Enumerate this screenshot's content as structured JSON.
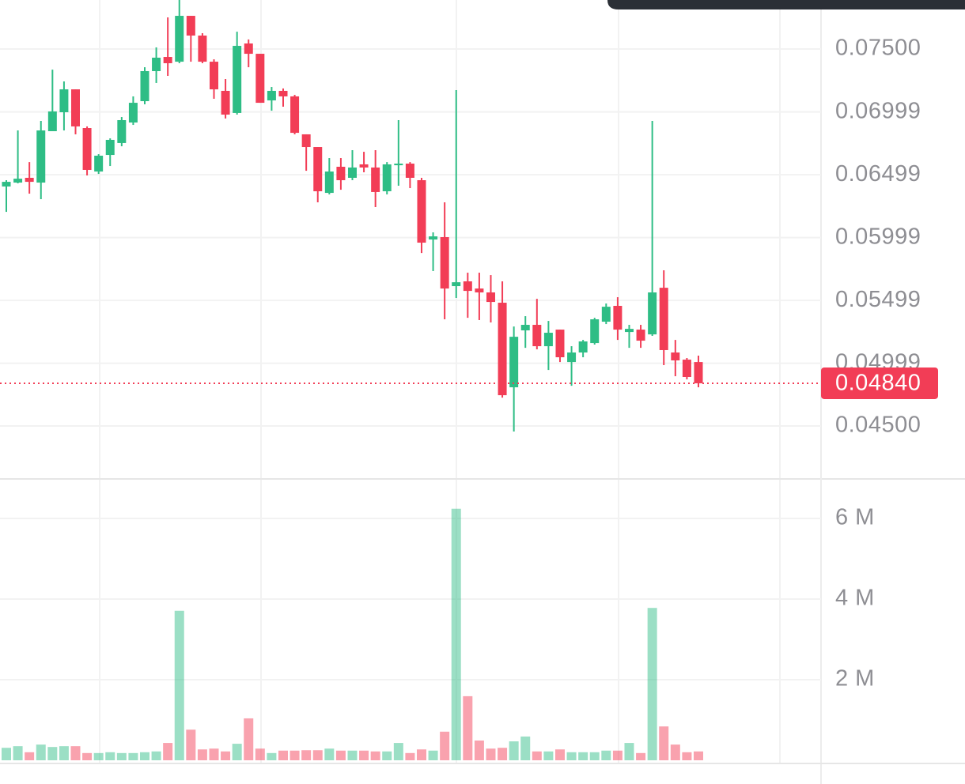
{
  "chart_data": [
    {
      "type": "candlestick",
      "open": [
        0.06406,
        0.06437,
        0.06475,
        0.06437,
        0.06846,
        0.06997,
        0.07179,
        0.06871,
        0.06525,
        0.06657,
        0.06752,
        0.06915,
        0.07085,
        0.07324,
        0.07437,
        0.07399,
        0.07764,
        0.07607,
        0.07399,
        0.07167,
        0.06991,
        0.07544,
        0.07462,
        0.07091,
        0.07167,
        0.07123,
        0.06821,
        0.0672,
        0.06355,
        0.06563,
        0.06475,
        0.06582,
        0.06557,
        0.06368,
        0.06575,
        0.06588,
        0.06456,
        0.05984,
        0.06003,
        0.05613,
        0.05651,
        0.05594,
        0.05563,
        0.05481,
        0.04808,
        0.05261,
        0.05305,
        0.05135,
        0.05267,
        0.05009,
        0.05085,
        0.0516,
        0.0533,
        0.05456,
        0.05248,
        0.05267,
        0.05229,
        0.056,
        0.05085,
        0.05028,
        0.05009
      ],
      "high": [
        0.06456,
        0.06852,
        0.066,
        0.06928,
        0.07336,
        0.07242,
        0.07179,
        0.06884,
        0.06663,
        0.06789,
        0.06959,
        0.07123,
        0.07355,
        0.07513,
        0.07752,
        0.0789,
        0.07764,
        0.07626,
        0.07418,
        0.07261,
        0.07638,
        0.07576,
        0.07462,
        0.07198,
        0.07186,
        0.07135,
        0.06821,
        0.0672,
        0.06632,
        0.06632,
        0.06695,
        0.06682,
        0.06695,
        0.066,
        0.06934,
        0.066,
        0.06475,
        0.06041,
        0.0628,
        0.07173,
        0.0572,
        0.0572,
        0.05701,
        0.05651,
        0.05292,
        0.05374,
        0.05512,
        0.05336,
        0.05267,
        0.05135,
        0.05185,
        0.05361,
        0.05475,
        0.05525,
        0.05305,
        0.05305,
        0.06928,
        0.05739,
        0.05185,
        0.05041,
        0.0506
      ],
      "low": [
        0.06204,
        0.06431,
        0.06349,
        0.06305,
        0.06846,
        0.06852,
        0.06821,
        0.06494,
        0.06506,
        0.06569,
        0.06726,
        0.06896,
        0.0706,
        0.0723,
        0.07286,
        0.07387,
        0.07399,
        0.07387,
        0.07104,
        0.06947,
        0.06978,
        0.07355,
        0.07072,
        0.07009,
        0.07041,
        0.06821,
        0.06531,
        0.0628,
        0.06343,
        0.0638,
        0.06456,
        0.06519,
        0.06242,
        0.06343,
        0.06412,
        0.06393,
        0.05877,
        0.05733,
        0.05349,
        0.05519,
        0.05361,
        0.05343,
        0.05324,
        0.04726,
        0.04456,
        0.05122,
        0.0511,
        0.04946,
        0.05009,
        0.0482,
        0.05047,
        0.05148,
        0.05311,
        0.05185,
        0.05122,
        0.05122,
        0.05217,
        0.04984,
        0.04896,
        0.04871,
        0.04808
      ],
      "close": [
        0.06443,
        0.06468,
        0.06443,
        0.06852,
        0.07003,
        0.07179,
        0.06884,
        0.06538,
        0.06651,
        0.06777,
        0.06934,
        0.07072,
        0.07324,
        0.07431,
        0.07387,
        0.07764,
        0.07607,
        0.07399,
        0.07179,
        0.06978,
        0.07525,
        0.07462,
        0.07072,
        0.07167,
        0.07123,
        0.06833,
        0.0672,
        0.06368,
        0.06525,
        0.06456,
        0.06557,
        0.06557,
        0.06362,
        0.06582,
        0.06588,
        0.06475,
        0.05959,
        0.06009,
        0.05594,
        0.05644,
        0.05575,
        0.05563,
        0.05487,
        0.04745,
        0.0521,
        0.05305,
        0.05135,
        0.05242,
        0.05047,
        0.05085,
        0.05173,
        0.05349,
        0.05449,
        0.05267,
        0.05273,
        0.05179,
        0.05563,
        0.05104,
        0.05022,
        0.0489,
        0.0484
      ],
      "up_color": "#2ebd85",
      "down_color": "#f23d56",
      "ylim": [
        0.04085,
        0.0789
      ],
      "yticks": [
        {
          "value": 0.075,
          "label": "0.07500"
        },
        0.06999,
        0.06499,
        0.05999,
        0.05499,
        0.04999,
        {
          "value": 0.045,
          "label": "0.04500"
        }
      ],
      "grid": true,
      "last_price": {
        "value": 0.0484,
        "label": "0.04840"
      }
    },
    {
      "type": "volume",
      "values": [
        310000,
        350000,
        200000,
        390000,
        330000,
        350000,
        350000,
        180000,
        180000,
        200000,
        180000,
        180000,
        200000,
        220000,
        430000,
        3710000,
        760000,
        270000,
        290000,
        220000,
        410000,
        1040000,
        290000,
        180000,
        240000,
        240000,
        250000,
        250000,
        290000,
        240000,
        240000,
        240000,
        220000,
        220000,
        430000,
        180000,
        270000,
        240000,
        710000,
        6240000,
        1590000,
        490000,
        290000,
        310000,
        470000,
        590000,
        220000,
        220000,
        270000,
        200000,
        200000,
        200000,
        240000,
        240000,
        430000,
        180000,
        3780000,
        840000,
        390000,
        200000,
        220000
      ],
      "ylim": [
        0,
        6960000
      ],
      "yticks": [
        {
          "value": 2000000,
          "label": "2 M"
        },
        {
          "value": 4000000,
          "label": "4 M"
        },
        {
          "value": 6000000,
          "label": "6 M"
        }
      ],
      "grid": true
    }
  ]
}
